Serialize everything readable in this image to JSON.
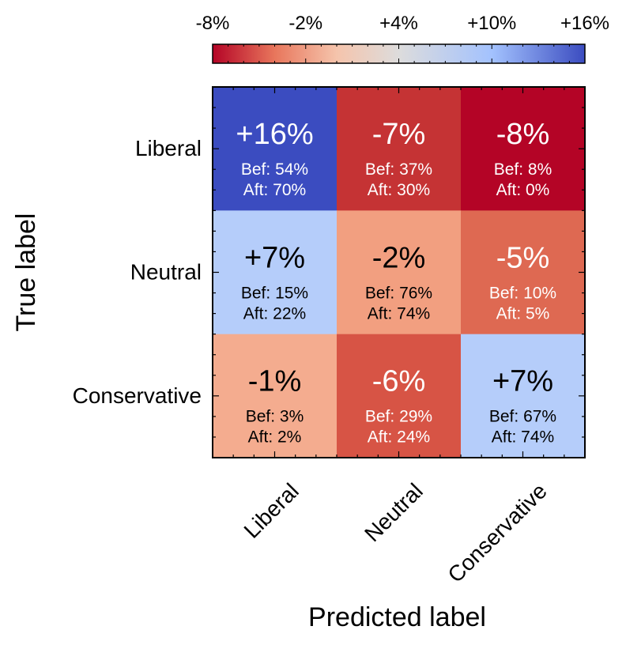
{
  "chart_data": {
    "type": "heatmap",
    "title": "",
    "xlabel": "Predicted label",
    "ylabel": "True label",
    "x_categories": [
      "Liberal",
      "Neutral",
      "Conservative"
    ],
    "y_categories": [
      "Liberal",
      "Neutral",
      "Conservative"
    ],
    "colorbar": {
      "range": [
        -8,
        16
      ],
      "ticks": [
        -8,
        -2,
        4,
        10,
        16
      ],
      "tick_labels": [
        "-8%",
        "-2%",
        "+4%",
        "+10%",
        "+16%"
      ],
      "colormap": "coolwarm (reversed)",
      "stops": [
        {
          "value": -8,
          "color": "#b40426"
        },
        {
          "value": -4,
          "color": "#e8765c"
        },
        {
          "value": 0,
          "color": "#f5c4ac"
        },
        {
          "value": 4,
          "color": "#dddcdc"
        },
        {
          "value": 10,
          "color": "#a3c2fe"
        },
        {
          "value": 16,
          "color": "#3b4cc0"
        }
      ]
    },
    "cells": [
      [
        {
          "delta": 16,
          "label": "+16%",
          "before": "Bef: 54%",
          "after": "Aft: 70%",
          "color": "#3b4cc0",
          "text_color": "#ffffff"
        },
        {
          "delta": -7,
          "label": "-7%",
          "before": "Bef: 37%",
          "after": "Aft: 30%",
          "color": "#c53334",
          "text_color": "#ffffff"
        },
        {
          "delta": -8,
          "label": "-8%",
          "before": "Bef: 8%",
          "after": "Aft: 0%",
          "color": "#b40426",
          "text_color": "#ffffff"
        }
      ],
      [
        {
          "delta": 7,
          "label": "+7%",
          "before": "Bef: 15%",
          "after": "Aft: 22%",
          "color": "#b5cdfa",
          "text_color": "#000000"
        },
        {
          "delta": -2,
          "label": "-2%",
          "before": "Bef: 76%",
          "after": "Aft: 74%",
          "color": "#f29f80",
          "text_color": "#000000"
        },
        {
          "delta": -5,
          "label": "-5%",
          "before": "Bef: 10%",
          "after": "Aft: 5%",
          "color": "#de6952",
          "text_color": "#ffffff"
        }
      ],
      [
        {
          "delta": -1,
          "label": "-1%",
          "before": "Bef: 3%",
          "after": "Aft: 2%",
          "color": "#f4ac8f",
          "text_color": "#000000"
        },
        {
          "delta": -6,
          "label": "-6%",
          "before": "Bef: 29%",
          "after": "Aft: 24%",
          "color": "#d75445",
          "text_color": "#ffffff"
        },
        {
          "delta": 7,
          "label": "+7%",
          "before": "Bef: 67%",
          "after": "Aft: 74%",
          "color": "#b5cdfa",
          "text_color": "#000000"
        }
      ]
    ]
  }
}
